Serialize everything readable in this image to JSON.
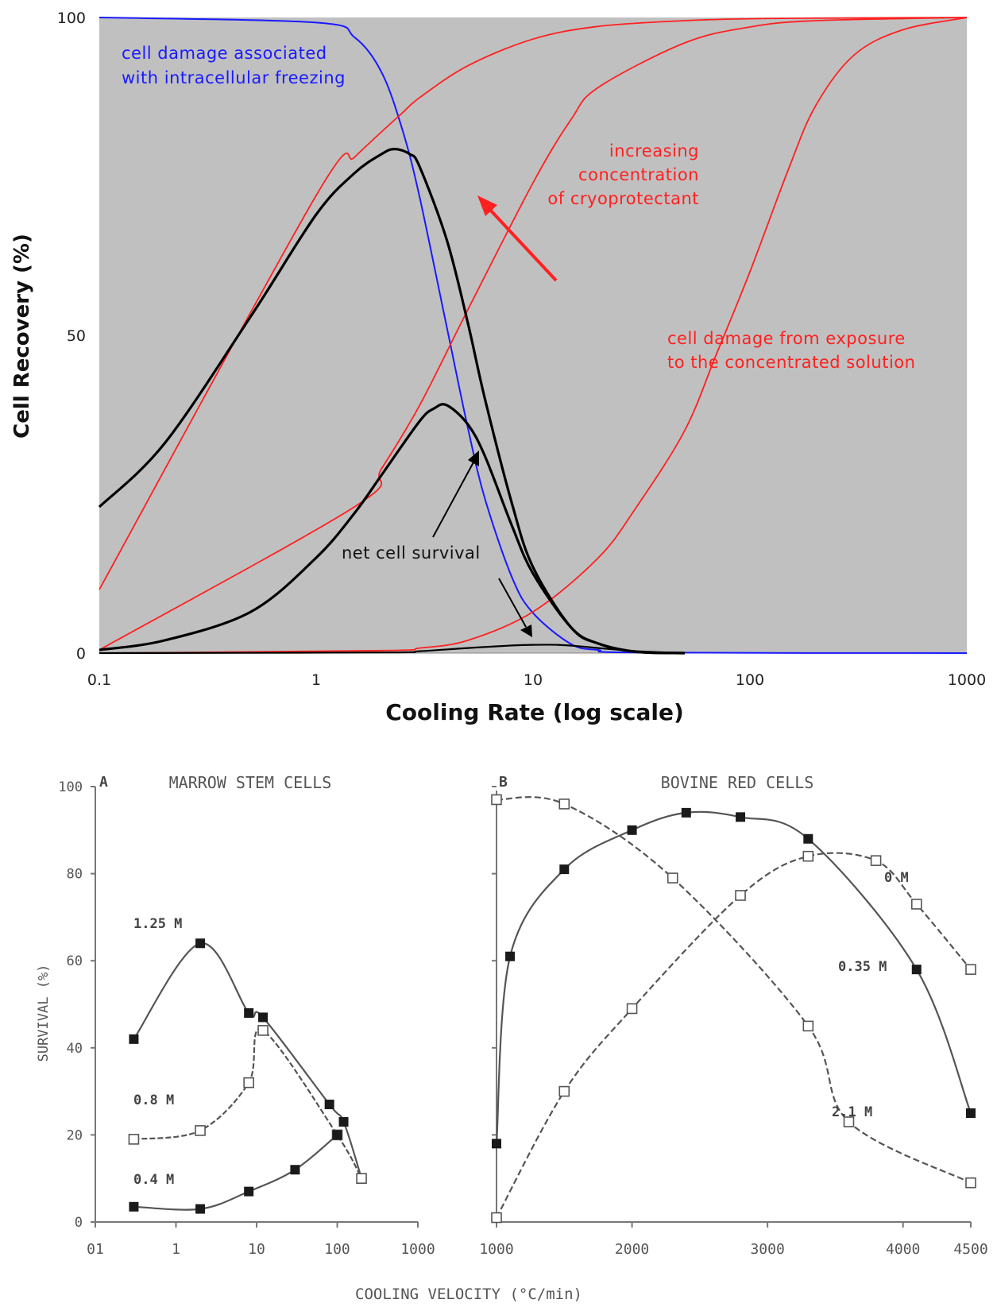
{
  "chart_data": [
    {
      "type": "line",
      "xscale": "log",
      "xlim": [
        0.1,
        1000
      ],
      "ylim": [
        0,
        100
      ],
      "xticks": [
        "0.1",
        "1",
        "10",
        "100",
        "1000"
      ],
      "yticks": [
        "0",
        "50",
        "100"
      ],
      "xlabel": "Cooling Rate (log scale)",
      "ylabel": "Cell Recovery (%)",
      "grid": false,
      "background": "#c0c0c0",
      "colors": {
        "intracellular": "#1a1aff",
        "solution": "#ff2020",
        "net": "#000000"
      },
      "series": [
        {
          "x": [
            0.1,
            1,
            1.5,
            2,
            2.5,
            3,
            4,
            5,
            6,
            8,
            10,
            15,
            20,
            30,
            1000
          ],
          "y": [
            100,
            99.2,
            96.9,
            91.4,
            82.3,
            71.7,
            51.3,
            35.5,
            24.3,
            11.9,
            6.3,
            1.4,
            0.5,
            0.1,
            0
          ]
        },
        {
          "x": [
            0.1,
            1,
            1.5,
            2,
            2.5,
            3,
            5,
            10,
            20,
            50,
            100,
            200,
            1000
          ],
          "y": [
            10,
            72,
            78,
            82,
            85,
            87.4,
            92.4,
            96.6,
            98.6,
            99.5,
            99.8,
            99.9,
            100
          ]
        },
        {
          "x": [
            0.1,
            1.5,
            2,
            3,
            5,
            10,
            15,
            20,
            50,
            100,
            200,
            1000
          ],
          "y": [
            0.5,
            23,
            29,
            39,
            54,
            74,
            84,
            89,
            96,
            98.5,
            99.5,
            100
          ]
        },
        {
          "x": [
            0.1,
            2,
            3,
            5,
            10,
            20,
            30,
            50,
            70,
            100,
            150,
            200,
            300,
            500,
            1000
          ],
          "y": [
            0,
            0.4,
            0.8,
            2,
            6.5,
            15,
            23,
            35,
            47,
            60,
            76,
            86,
            94,
            98,
            100
          ]
        },
        {
          "x": [
            0.1,
            0.2,
            0.5,
            1,
            1.5,
            2,
            2.3,
            2.7,
            3,
            4,
            5,
            6,
            8,
            10,
            15,
            20,
            30,
            50
          ],
          "y": [
            23,
            33,
            53,
            69,
            75.5,
            78.5,
            79.3,
            78.5,
            76.5,
            65,
            52,
            40,
            23.5,
            13.5,
            4,
            1.5,
            0.2,
            0
          ]
        },
        {
          "x": [
            0.1,
            0.2,
            0.5,
            1,
            1.5,
            2,
            3,
            3.5,
            4,
            5,
            6,
            8,
            10,
            15,
            20,
            30,
            50
          ],
          "y": [
            0.5,
            2,
            6.5,
            15,
            22,
            28,
            36.5,
            38.5,
            39,
            36,
            31,
            20,
            12.5,
            4,
            1.5,
            0.2,
            0
          ]
        },
        {
          "x": [
            0.1,
            2,
            3,
            5,
            8,
            10,
            13,
            16,
            20,
            30,
            50
          ],
          "y": [
            0,
            0.1,
            0.3,
            0.8,
            1.2,
            1.3,
            1.3,
            1.1,
            0.8,
            0.3,
            0
          ]
        }
      ],
      "annotations": [
        "cell damage associated",
        "with intracellular freezing",
        "increasing",
        "concentration",
        "of cryoprotectant",
        "cell damage from exposure",
        "to the concentrated solution",
        "net cell survival"
      ]
    },
    {
      "type": "line",
      "xscale": "log",
      "xlim": [
        0.1,
        1000
      ],
      "ylim": [
        0,
        100
      ],
      "yticks": [
        "100",
        "80",
        "60",
        "40",
        "20",
        "0"
      ],
      "xticks": [
        "01",
        "1",
        "10",
        "100",
        "1000"
      ],
      "panel_label": "A",
      "title": "MARROW STEM CELLS",
      "ylabel": "SURVIVAL (%)",
      "series": [
        {
          "name": "1.25 M",
          "marker": "filled",
          "x": [
            0.3,
            2,
            8,
            12,
            80,
            120,
            200
          ],
          "y": [
            42,
            64,
            48,
            47,
            27,
            23,
            10
          ]
        },
        {
          "name": "0.8 M",
          "marker": "open",
          "x": [
            0.3,
            2,
            8,
            12,
            100,
            200
          ],
          "y": [
            19,
            21,
            32,
            44,
            20,
            10
          ]
        },
        {
          "name": "0.4 M",
          "marker": "filled",
          "x": [
            0.3,
            2,
            8,
            30,
            100
          ],
          "y": [
            3.5,
            3,
            7,
            12,
            20
          ]
        }
      ]
    },
    {
      "type": "line",
      "xlim": [
        1000,
        4500
      ],
      "ylim": [
        0,
        100
      ],
      "xticks": [
        "1000",
        "2000",
        "3000",
        "4000",
        "4500"
      ],
      "panel_label": "B",
      "title": "BOVINE RED CELLS",
      "xlabel": "COOLING VELOCITY (°C/min)",
      "series": [
        {
          "name": "0 M",
          "marker": "open",
          "x": [
            1000,
            1500,
            2300,
            3300,
            3600,
            4500
          ],
          "y": [
            97,
            96,
            79,
            45,
            23,
            9
          ]
        },
        {
          "name": "0.35 M",
          "marker": "filled",
          "x": [
            1000,
            1100,
            1500,
            2000,
            2400,
            2800,
            3300,
            4100,
            4500
          ],
          "y": [
            18,
            61,
            81,
            90,
            94,
            93,
            88,
            58,
            25
          ]
        },
        {
          "name": "2.1 M",
          "marker": "open",
          "x": [
            1000,
            1500,
            2000,
            2800,
            3300,
            3800,
            4100,
            4500
          ],
          "y": [
            1,
            30,
            49,
            75,
            84,
            83,
            73,
            58
          ]
        }
      ]
    }
  ]
}
